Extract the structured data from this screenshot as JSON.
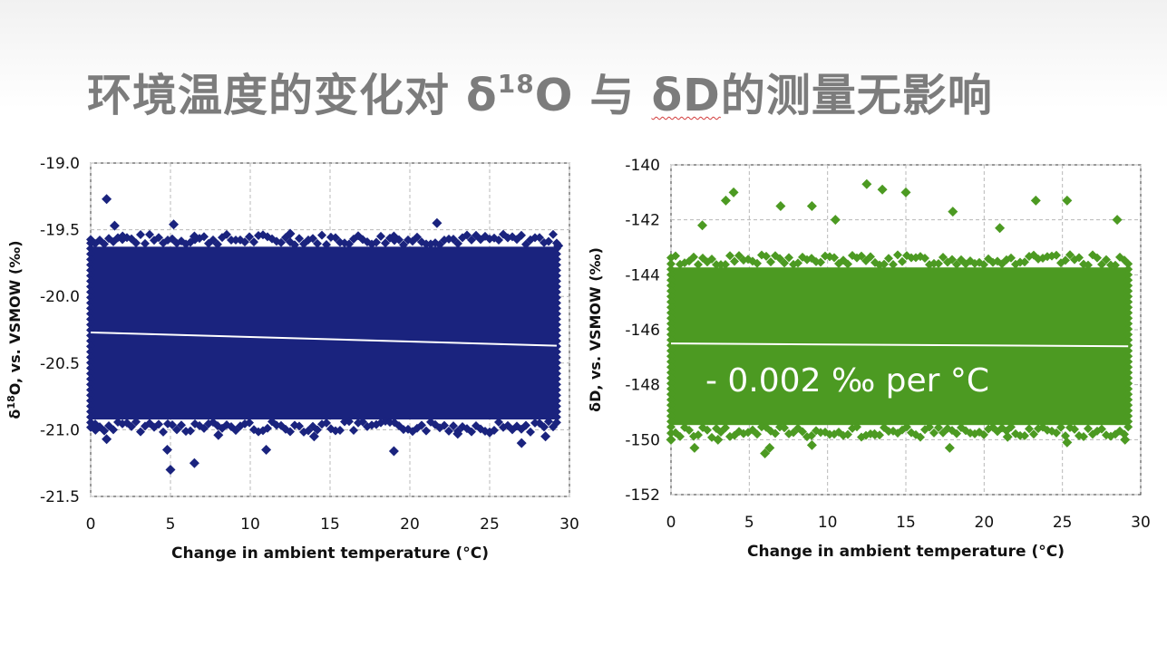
{
  "slide": {
    "title_prefix": "环境温度的变化对 δ",
    "title_sup": "18",
    "title_mid": "O 与 ",
    "title_delta": "δD",
    "title_suffix": "的测量无影响"
  },
  "colors": {
    "title": "#7c7c7c",
    "series_o18": "#1a237e",
    "series_d": "#4c9a22",
    "trendline": "#ffffff",
    "grid": "#b8b8b8"
  },
  "chart_data": [
    {
      "type": "scatter",
      "id": "o18",
      "marker": "diamond",
      "title": "",
      "xlabel": "Change in ambient temperature (°C)",
      "ylabel_prefix": "δ",
      "ylabel_sup": "18",
      "ylabel_suffix": "O, vs. VSMOW (‰)",
      "xlim": [
        0,
        30
      ],
      "ylim": [
        -21.5,
        -19.0
      ],
      "x_ticks": [
        "0",
        "5",
        "10",
        "15",
        "20",
        "25",
        "30"
      ],
      "y_ticks": [
        "-19.0",
        "-19.5",
        "-20.0",
        "-20.5",
        "-21.0",
        "-21.5"
      ],
      "grid": true,
      "dense_band": {
        "x_range": [
          0,
          29.2
        ],
        "y_range": [
          -20.95,
          -19.6
        ]
      },
      "trendline": {
        "start": [
          0,
          -20.27
        ],
        "end": [
          29.2,
          -20.37
        ]
      },
      "outliers": [
        {
          "x": 1.0,
          "y": -19.27
        },
        {
          "x": 1.5,
          "y": -19.47
        },
        {
          "x": 2.0,
          "y": -19.55
        },
        {
          "x": 5.2,
          "y": -19.46
        },
        {
          "x": 6.5,
          "y": -19.55
        },
        {
          "x": 21.7,
          "y": -19.45
        },
        {
          "x": 19.0,
          "y": -19.55
        },
        {
          "x": 12.5,
          "y": -19.53
        },
        {
          "x": 29.3,
          "y": -19.62
        },
        {
          "x": 5.0,
          "y": -21.3
        },
        {
          "x": 6.5,
          "y": -21.25
        },
        {
          "x": 4.8,
          "y": -21.15
        },
        {
          "x": 11.0,
          "y": -21.15
        },
        {
          "x": 19.0,
          "y": -21.16
        },
        {
          "x": 1.0,
          "y": -21.07
        },
        {
          "x": 27.0,
          "y": -21.1
        },
        {
          "x": 28.5,
          "y": -21.05
        },
        {
          "x": 0.3,
          "y": -21.0
        },
        {
          "x": 14.0,
          "y": -21.05
        },
        {
          "x": 23.0,
          "y": -21.03
        },
        {
          "x": 8.0,
          "y": -21.04
        },
        {
          "x": 25.0,
          "y": -21.02
        }
      ]
    },
    {
      "type": "scatter",
      "id": "d",
      "marker": "diamond",
      "title": "",
      "xlabel": "Change in ambient temperature (°C)",
      "ylabel": "δD, vs. VSMOW (‰)",
      "xlim": [
        0,
        30
      ],
      "ylim": [
        -152,
        -140
      ],
      "x_ticks": [
        "0",
        "5",
        "10",
        "15",
        "20",
        "25",
        "30"
      ],
      "y_ticks": [
        "-140",
        "-142",
        "-144",
        "-146",
        "-148",
        "-150",
        "-152"
      ],
      "grid": true,
      "annotation": "- 0.002 ‰ per °C",
      "dense_band": {
        "x_range": [
          0,
          29.2
        ],
        "y_range": [
          -149.6,
          -143.6
        ]
      },
      "trendline": {
        "start": [
          0,
          -146.5
        ],
        "end": [
          29.2,
          -146.6
        ]
      },
      "outliers": [
        {
          "x": 4.0,
          "y": -141.0
        },
        {
          "x": 3.5,
          "y": -141.3
        },
        {
          "x": 12.5,
          "y": -140.7
        },
        {
          "x": 13.5,
          "y": -140.9
        },
        {
          "x": 15.0,
          "y": -141.0
        },
        {
          "x": 9.0,
          "y": -141.5
        },
        {
          "x": 7.0,
          "y": -141.5
        },
        {
          "x": 23.3,
          "y": -141.3
        },
        {
          "x": 25.3,
          "y": -141.3
        },
        {
          "x": 28.5,
          "y": -142.0
        },
        {
          "x": 18.0,
          "y": -141.7
        },
        {
          "x": 2.0,
          "y": -142.2
        },
        {
          "x": 10.5,
          "y": -142.0
        },
        {
          "x": 21.0,
          "y": -142.3
        },
        {
          "x": 6.0,
          "y": -150.5
        },
        {
          "x": 6.3,
          "y": -150.3
        },
        {
          "x": 9.0,
          "y": -150.2
        },
        {
          "x": 1.5,
          "y": -150.3
        },
        {
          "x": 17.8,
          "y": -150.3
        },
        {
          "x": 0.0,
          "y": -150.0
        },
        {
          "x": 29.0,
          "y": -150.0
        },
        {
          "x": 25.3,
          "y": -150.1
        },
        {
          "x": 3.0,
          "y": -150.0
        },
        {
          "x": 13.0,
          "y": -149.8
        },
        {
          "x": 21.5,
          "y": -149.9
        }
      ]
    }
  ]
}
